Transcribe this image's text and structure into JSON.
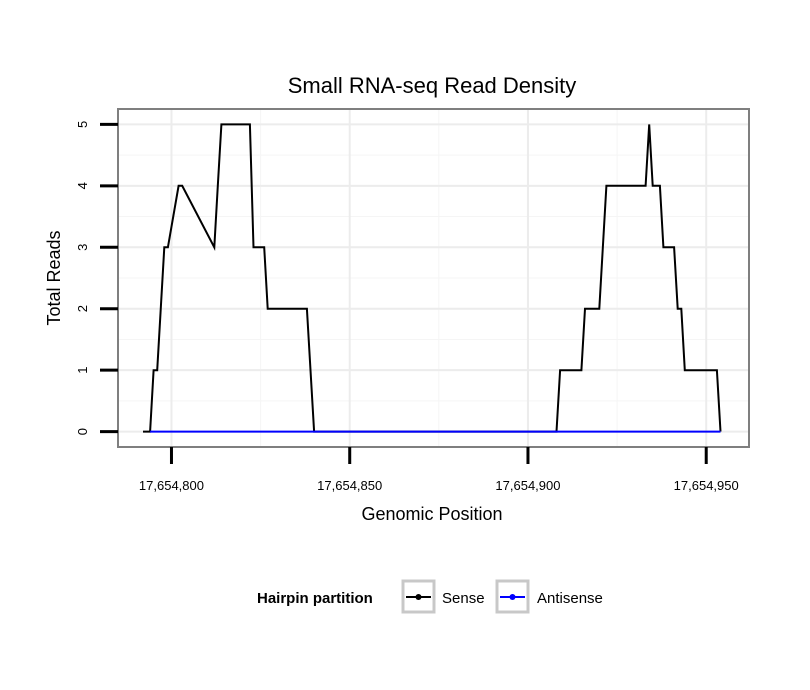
{
  "chart_data": {
    "type": "line",
    "title": "Small RNA-seq Read Density",
    "xlabel": "Genomic Position",
    "ylabel": "Total Reads",
    "xlim": [
      17654785,
      17654962
    ],
    "ylim": [
      -0.25,
      5.25
    ],
    "xticks": [
      17654800,
      17654850,
      17654900,
      17654950
    ],
    "xtick_labels": [
      "17,654,800",
      "17,654,850",
      "17,654,900",
      "17,654,950"
    ],
    "yticks": [
      0,
      1,
      2,
      3,
      4,
      5
    ],
    "ytick_labels": [
      "0",
      "1",
      "2",
      "3",
      "4",
      "5"
    ],
    "grid": true,
    "legend": {
      "title": "Hairpin partition",
      "position": "bottom",
      "entries": [
        "Sense",
        "Antisense"
      ]
    },
    "series": [
      {
        "name": "Sense",
        "color": "#000000",
        "x": [
          17654792,
          17654794,
          17654795,
          17654796,
          17654798,
          17654799,
          17654802,
          17654803,
          17654812,
          17654813,
          17654814,
          17654815,
          17654816,
          17654822,
          17654823,
          17654824,
          17654826,
          17654827,
          17654838,
          17654840,
          17654908,
          17654909,
          17654915,
          17654916,
          17654920,
          17654922,
          17654933,
          17654934,
          17654935,
          17654937,
          17654938,
          17654941,
          17654942,
          17654943,
          17654944,
          17654945,
          17654953,
          17654954
        ],
        "values": [
          0,
          0,
          1,
          1,
          3,
          3,
          4,
          4,
          3,
          4,
          5,
          5,
          5,
          5,
          3,
          3,
          3,
          2,
          2,
          0,
          0,
          1,
          1,
          2,
          2,
          4,
          4,
          5,
          4,
          4,
          3,
          3,
          2,
          2,
          1,
          1,
          1,
          0
        ]
      },
      {
        "name": "Antisense",
        "color": "#0000ff",
        "x": [
          17654794,
          17654954
        ],
        "values": [
          0,
          0
        ]
      }
    ]
  }
}
